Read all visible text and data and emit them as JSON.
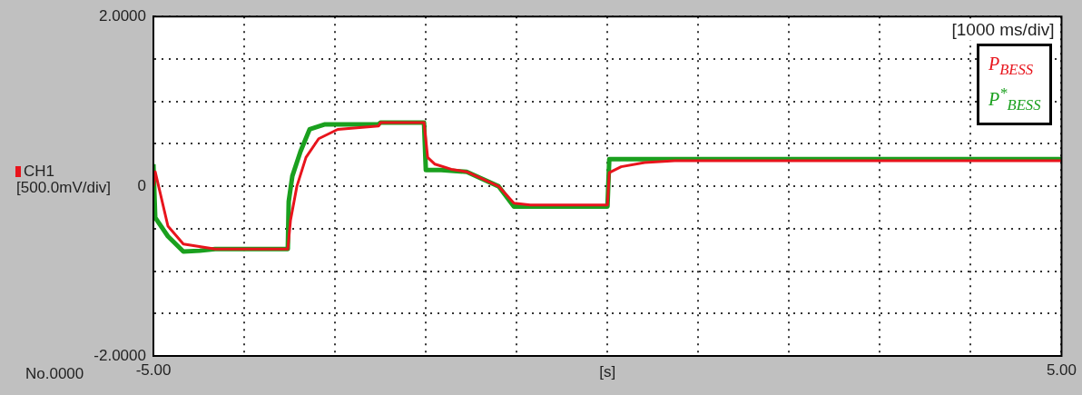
{
  "chart_data": {
    "type": "line",
    "xlabel": "[s]",
    "annotations": [
      "No.0000",
      "CH1",
      "[500.0mV/div]",
      "[1000 ms/div]"
    ],
    "xlim": [
      -5,
      5
    ],
    "xticks": [
      {
        "value": -5,
        "label": "-5.00"
      },
      {
        "value": -4,
        "label": null
      },
      {
        "value": -3,
        "label": null
      },
      {
        "value": -2,
        "label": null
      },
      {
        "value": -1,
        "label": null
      },
      {
        "value": 0,
        "label": null
      },
      {
        "value": 1,
        "label": null
      },
      {
        "value": 2,
        "label": null
      },
      {
        "value": 3,
        "label": null
      },
      {
        "value": 4,
        "label": null
      },
      {
        "value": 5,
        "label": "5.00"
      }
    ],
    "ylim": [
      -2,
      2
    ],
    "yticks": [
      {
        "value": -2,
        "label": "-2.0000"
      },
      {
        "value": -1.5,
        "label": null
      },
      {
        "value": -1,
        "label": null
      },
      {
        "value": -0.5,
        "label": null
      },
      {
        "value": 0,
        "label": "0"
      },
      {
        "value": 0.5,
        "label": null
      },
      {
        "value": 1,
        "label": null
      },
      {
        "value": 1.5,
        "label": null
      },
      {
        "value": 2,
        "label": "2.0000"
      }
    ],
    "grid": true,
    "legend": "top right",
    "line_style": "solid",
    "series": [
      {
        "name": "P$_{BESS}$",
        "color": "#e8141c",
        "x": [
          -5.0,
          -4.98,
          -4.84,
          -4.67,
          -4.32,
          -3.52,
          -3.49,
          -3.42,
          -3.32,
          -3.18,
          -2.97,
          -2.52,
          -2.5,
          -2.02,
          -1.98,
          -1.9,
          -1.72,
          -1.55,
          -1.2,
          -1.03,
          -0.85,
          0.0,
          0.02,
          0.15,
          0.41,
          0.74,
          5.0
        ],
        "values": [
          0.0,
          0.17,
          -0.47,
          -0.68,
          -0.74,
          -0.74,
          -0.4,
          0.0,
          0.34,
          0.56,
          0.67,
          0.71,
          0.75,
          0.75,
          0.34,
          0.26,
          0.2,
          0.17,
          0.0,
          -0.2,
          -0.22,
          -0.22,
          0.16,
          0.23,
          0.28,
          0.3,
          0.3
        ]
      },
      {
        "name": "P$^{*}$$_{BESS}$",
        "color": "#1aa01e",
        "x": [
          -5.0,
          -4.98,
          -4.84,
          -4.67,
          -4.49,
          -4.32,
          -3.52,
          -3.51,
          -3.47,
          -3.38,
          -3.28,
          -3.11,
          -2.52,
          -2.5,
          -2.02,
          -2.0,
          -1.83,
          -1.55,
          -1.2,
          -1.03,
          0.0,
          0.02,
          5.0
        ],
        "values": [
          0.26,
          -0.37,
          -0.59,
          -0.77,
          -0.76,
          -0.74,
          -0.74,
          -0.18,
          0.12,
          0.41,
          0.67,
          0.73,
          0.73,
          0.75,
          0.75,
          0.19,
          0.19,
          0.17,
          0.0,
          -0.24,
          -0.24,
          0.32,
          0.32
        ]
      }
    ]
  }
}
